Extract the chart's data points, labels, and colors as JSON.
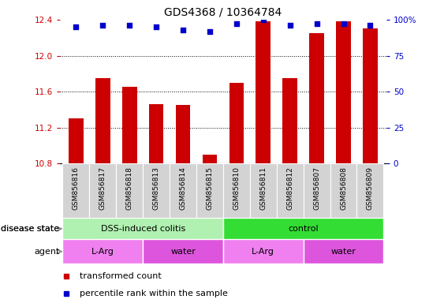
{
  "title": "GDS4368 / 10364784",
  "samples": [
    "GSM856816",
    "GSM856817",
    "GSM856818",
    "GSM856813",
    "GSM856814",
    "GSM856815",
    "GSM856810",
    "GSM856811",
    "GSM856812",
    "GSM856807",
    "GSM856808",
    "GSM856809"
  ],
  "transformed_counts": [
    11.3,
    11.75,
    11.65,
    11.46,
    11.45,
    10.9,
    11.7,
    12.38,
    11.75,
    12.25,
    12.38,
    12.3
  ],
  "percentile_ranks": [
    95,
    96,
    96,
    95,
    93,
    92,
    97,
    100,
    96,
    97,
    97,
    96
  ],
  "ylim_left": [
    10.8,
    12.4
  ],
  "yticks_left": [
    10.8,
    11.2,
    11.6,
    12.0,
    12.4
  ],
  "ylim_right": [
    0,
    100
  ],
  "yticks_right": [
    0,
    25,
    50,
    75,
    100
  ],
  "yticklabels_right": [
    "0",
    "25",
    "50",
    "75",
    "100%"
  ],
  "bar_color": "#cc0000",
  "dot_color": "#0000cc",
  "dot_size": 25,
  "bar_width": 0.55,
  "disease_state_groups": [
    {
      "label": "DSS-induced colitis",
      "start": 0,
      "end": 6,
      "color": "#b0f0b0"
    },
    {
      "label": "control",
      "start": 6,
      "end": 12,
      "color": "#33dd33"
    }
  ],
  "agent_groups": [
    {
      "label": "L-Arg",
      "start": 0,
      "end": 3,
      "color": "#f080f0"
    },
    {
      "label": "water",
      "start": 3,
      "end": 6,
      "color": "#dd55dd"
    },
    {
      "label": "L-Arg",
      "start": 6,
      "end": 9,
      "color": "#f080f0"
    },
    {
      "label": "water",
      "start": 9,
      "end": 12,
      "color": "#dd55dd"
    }
  ],
  "legend_items": [
    {
      "label": "transformed count",
      "color": "#cc0000"
    },
    {
      "label": "percentile rank within the sample",
      "color": "#0000cc"
    }
  ],
  "left_ylabel_color": "#cc0000",
  "right_ylabel_color": "#0000cc",
  "background_color": "#ffffff",
  "title_fontsize": 10,
  "tick_fontsize": 7.5,
  "sample_fontsize": 6.5,
  "annotation_fontsize": 8,
  "legend_fontsize": 8
}
